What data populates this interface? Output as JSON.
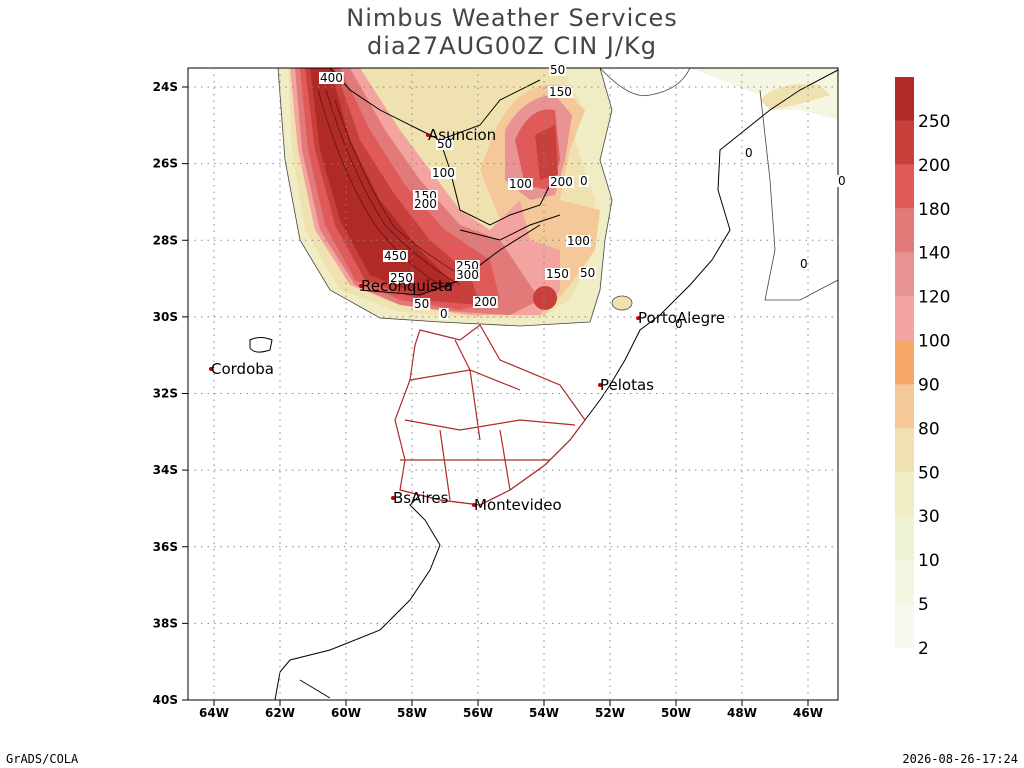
{
  "header": {
    "title": "Nimbus Weather Services",
    "subtitle": "dia27AUG00Z CIN J/Kg"
  },
  "map": {
    "lat_ticks": [
      "24S",
      "26S",
      "28S",
      "30S",
      "32S",
      "34S",
      "36S",
      "38S",
      "40S"
    ],
    "lon_ticks": [
      "64W",
      "62W",
      "60W",
      "58W",
      "56W",
      "54W",
      "52W",
      "50W",
      "48W",
      "46W"
    ],
    "cities": [
      "Asuncion",
      "Reconquista",
      "PortoAlegre",
      "Cordoba",
      "Pelotas",
      "BsAires",
      "Montevideo"
    ],
    "contour_labels": [
      "400",
      "50",
      "150",
      "50",
      "100",
      "100",
      "200",
      "0",
      "150",
      "200",
      "100",
      "450",
      "250",
      "250",
      "300",
      "50",
      "150",
      "50",
      "200",
      "0",
      "0",
      "0",
      "0",
      "0"
    ]
  },
  "colorbar": {
    "labels": [
      "2",
      "5",
      "10",
      "30",
      "50",
      "80",
      "90",
      "100",
      "120",
      "140",
      "180",
      "200",
      "250"
    ],
    "colors": [
      "#f8f9ee",
      "#f4f6e2",
      "#eff3d4",
      "#f0ecc4",
      "#f0e2b0",
      "#f4c898",
      "#f7a868",
      "#f4a4a0",
      "#e89494",
      "#e27a7a",
      "#e05a5a",
      "#c8403c",
      "#b02a28"
    ]
  },
  "footer": {
    "left": "GrADS/COLA",
    "right": "2026-08-26-17:24"
  }
}
